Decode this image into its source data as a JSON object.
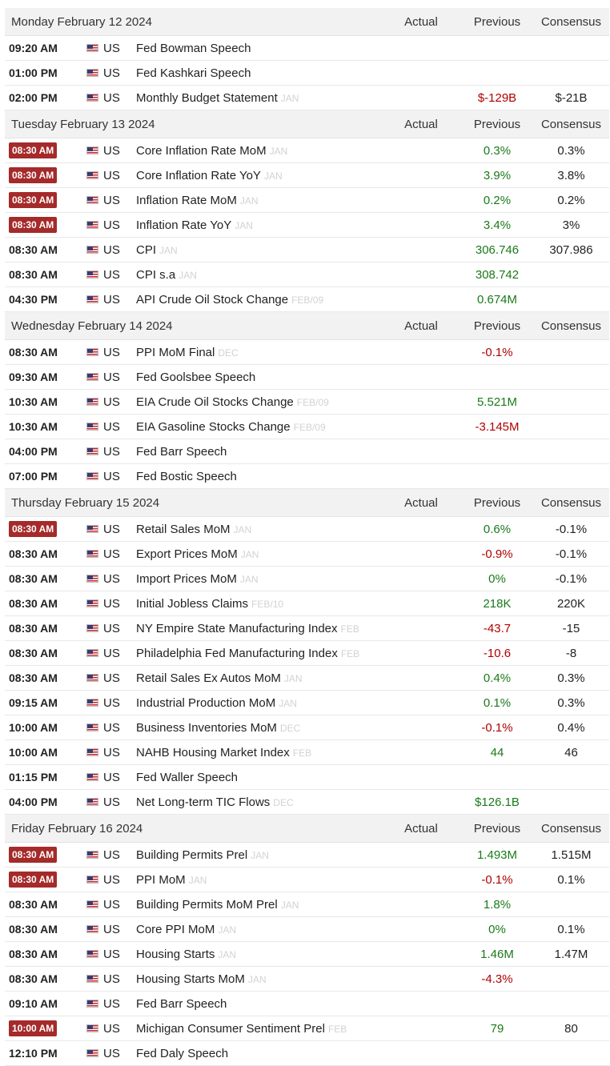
{
  "columns": {
    "actual": "Actual",
    "previous": "Previous",
    "consensus": "Consensus"
  },
  "colors": {
    "highlight_time_bg": "#a52a2a",
    "positive": "#1a7a1a",
    "negative": "#b00000"
  },
  "days": [
    {
      "date": "Monday February 12 2024",
      "events": [
        {
          "time": "09:20 AM",
          "hl": false,
          "country": "US",
          "event": "Fed Bowman Speech",
          "ref": "",
          "actual": "",
          "previous": "",
          "prev_color": "",
          "consensus": ""
        },
        {
          "time": "01:00 PM",
          "hl": false,
          "country": "US",
          "event": "Fed Kashkari Speech",
          "ref": "",
          "actual": "",
          "previous": "",
          "prev_color": "",
          "consensus": ""
        },
        {
          "time": "02:00 PM",
          "hl": false,
          "country": "US",
          "event": "Monthly Budget Statement",
          "ref": "JAN",
          "actual": "",
          "previous": "$-129B",
          "prev_color": "neg",
          "consensus": "$-21B"
        }
      ]
    },
    {
      "date": "Tuesday February 13 2024",
      "events": [
        {
          "time": "08:30 AM",
          "hl": true,
          "country": "US",
          "event": "Core Inflation Rate MoM",
          "ref": "JAN",
          "actual": "",
          "previous": "0.3%",
          "prev_color": "pos",
          "consensus": "0.3%"
        },
        {
          "time": "08:30 AM",
          "hl": true,
          "country": "US",
          "event": "Core Inflation Rate YoY",
          "ref": "JAN",
          "actual": "",
          "previous": "3.9%",
          "prev_color": "pos",
          "consensus": "3.8%"
        },
        {
          "time": "08:30 AM",
          "hl": true,
          "country": "US",
          "event": "Inflation Rate MoM",
          "ref": "JAN",
          "actual": "",
          "previous": "0.2%",
          "prev_color": "pos",
          "consensus": "0.2%"
        },
        {
          "time": "08:30 AM",
          "hl": true,
          "country": "US",
          "event": "Inflation Rate YoY",
          "ref": "JAN",
          "actual": "",
          "previous": "3.4%",
          "prev_color": "pos",
          "consensus": "3%"
        },
        {
          "time": "08:30 AM",
          "hl": false,
          "country": "US",
          "event": "CPI",
          "ref": "JAN",
          "actual": "",
          "previous": "306.746",
          "prev_color": "pos",
          "consensus": "307.986"
        },
        {
          "time": "08:30 AM",
          "hl": false,
          "country": "US",
          "event": "CPI s.a",
          "ref": "JAN",
          "actual": "",
          "previous": "308.742",
          "prev_color": "pos",
          "consensus": ""
        },
        {
          "time": "04:30 PM",
          "hl": false,
          "country": "US",
          "event": "API Crude Oil Stock Change",
          "ref": "FEB/09",
          "actual": "",
          "previous": "0.674M",
          "prev_color": "pos",
          "consensus": ""
        }
      ]
    },
    {
      "date": "Wednesday February 14 2024",
      "events": [
        {
          "time": "08:30 AM",
          "hl": false,
          "country": "US",
          "event": "PPI MoM Final",
          "ref": "DEC",
          "actual": "",
          "previous": "-0.1%",
          "prev_color": "neg",
          "consensus": ""
        },
        {
          "time": "09:30 AM",
          "hl": false,
          "country": "US",
          "event": "Fed Goolsbee Speech",
          "ref": "",
          "actual": "",
          "previous": "",
          "prev_color": "",
          "consensus": ""
        },
        {
          "time": "10:30 AM",
          "hl": false,
          "country": "US",
          "event": "EIA Crude Oil Stocks Change",
          "ref": "FEB/09",
          "actual": "",
          "previous": "5.521M",
          "prev_color": "pos",
          "consensus": ""
        },
        {
          "time": "10:30 AM",
          "hl": false,
          "country": "US",
          "event": "EIA Gasoline Stocks Change",
          "ref": "FEB/09",
          "actual": "",
          "previous": "-3.145M",
          "prev_color": "neg",
          "consensus": ""
        },
        {
          "time": "04:00 PM",
          "hl": false,
          "country": "US",
          "event": "Fed Barr Speech",
          "ref": "",
          "actual": "",
          "previous": "",
          "prev_color": "",
          "consensus": ""
        },
        {
          "time": "07:00 PM",
          "hl": false,
          "country": "US",
          "event": "Fed Bostic Speech",
          "ref": "",
          "actual": "",
          "previous": "",
          "prev_color": "",
          "consensus": ""
        }
      ]
    },
    {
      "date": "Thursday February 15 2024",
      "events": [
        {
          "time": "08:30 AM",
          "hl": true,
          "country": "US",
          "event": "Retail Sales MoM",
          "ref": "JAN",
          "actual": "",
          "previous": "0.6%",
          "prev_color": "pos",
          "consensus": "-0.1%"
        },
        {
          "time": "08:30 AM",
          "hl": false,
          "country": "US",
          "event": "Export Prices MoM",
          "ref": "JAN",
          "actual": "",
          "previous": "-0.9%",
          "prev_color": "neg",
          "consensus": "-0.1%"
        },
        {
          "time": "08:30 AM",
          "hl": false,
          "country": "US",
          "event": "Import Prices MoM",
          "ref": "JAN",
          "actual": "",
          "previous": "0%",
          "prev_color": "pos",
          "consensus": "-0.1%"
        },
        {
          "time": "08:30 AM",
          "hl": false,
          "country": "US",
          "event": "Initial Jobless Claims",
          "ref": "FEB/10",
          "actual": "",
          "previous": "218K",
          "prev_color": "pos",
          "consensus": "220K"
        },
        {
          "time": "08:30 AM",
          "hl": false,
          "country": "US",
          "event": "NY Empire State Manufacturing Index",
          "ref": "FEB",
          "actual": "",
          "previous": "-43.7",
          "prev_color": "neg",
          "consensus": "-15"
        },
        {
          "time": "08:30 AM",
          "hl": false,
          "country": "US",
          "event": "Philadelphia Fed Manufacturing Index",
          "ref": "FEB",
          "actual": "",
          "previous": "-10.6",
          "prev_color": "neg",
          "consensus": "-8"
        },
        {
          "time": "08:30 AM",
          "hl": false,
          "country": "US",
          "event": "Retail Sales Ex Autos MoM",
          "ref": "JAN",
          "actual": "",
          "previous": "0.4%",
          "prev_color": "pos",
          "consensus": "0.3%"
        },
        {
          "time": "09:15 AM",
          "hl": false,
          "country": "US",
          "event": "Industrial Production MoM",
          "ref": "JAN",
          "actual": "",
          "previous": "0.1%",
          "prev_color": "pos",
          "consensus": "0.3%"
        },
        {
          "time": "10:00 AM",
          "hl": false,
          "country": "US",
          "event": "Business Inventories MoM",
          "ref": "DEC",
          "actual": "",
          "previous": "-0.1%",
          "prev_color": "neg",
          "consensus": "0.4%"
        },
        {
          "time": "10:00 AM",
          "hl": false,
          "country": "US",
          "event": "NAHB Housing Market Index",
          "ref": "FEB",
          "actual": "",
          "previous": "44",
          "prev_color": "pos",
          "consensus": "46"
        },
        {
          "time": "01:15 PM",
          "hl": false,
          "country": "US",
          "event": "Fed Waller Speech",
          "ref": "",
          "actual": "",
          "previous": "",
          "prev_color": "",
          "consensus": ""
        },
        {
          "time": "04:00 PM",
          "hl": false,
          "country": "US",
          "event": "Net Long-term TIC Flows",
          "ref": "DEC",
          "actual": "",
          "previous": "$126.1B",
          "prev_color": "pos",
          "consensus": ""
        }
      ]
    },
    {
      "date": "Friday February 16 2024",
      "events": [
        {
          "time": "08:30 AM",
          "hl": true,
          "country": "US",
          "event": "Building Permits Prel",
          "ref": "JAN",
          "actual": "",
          "previous": "1.493M",
          "prev_color": "pos",
          "consensus": "1.515M"
        },
        {
          "time": "08:30 AM",
          "hl": true,
          "country": "US",
          "event": "PPI MoM",
          "ref": "JAN",
          "actual": "",
          "previous": "-0.1%",
          "prev_color": "neg",
          "consensus": "0.1%"
        },
        {
          "time": "08:30 AM",
          "hl": false,
          "country": "US",
          "event": "Building Permits MoM Prel",
          "ref": "JAN",
          "actual": "",
          "previous": "1.8%",
          "prev_color": "pos",
          "consensus": ""
        },
        {
          "time": "08:30 AM",
          "hl": false,
          "country": "US",
          "event": "Core PPI MoM",
          "ref": "JAN",
          "actual": "",
          "previous": "0%",
          "prev_color": "pos",
          "consensus": "0.1%"
        },
        {
          "time": "08:30 AM",
          "hl": false,
          "country": "US",
          "event": "Housing Starts",
          "ref": "JAN",
          "actual": "",
          "previous": "1.46M",
          "prev_color": "pos",
          "consensus": "1.47M"
        },
        {
          "time": "08:30 AM",
          "hl": false,
          "country": "US",
          "event": "Housing Starts MoM",
          "ref": "JAN",
          "actual": "",
          "previous": "-4.3%",
          "prev_color": "neg",
          "consensus": ""
        },
        {
          "time": "09:10 AM",
          "hl": false,
          "country": "US",
          "event": "Fed Barr Speech",
          "ref": "",
          "actual": "",
          "previous": "",
          "prev_color": "",
          "consensus": ""
        },
        {
          "time": "10:00 AM",
          "hl": true,
          "country": "US",
          "event": "Michigan Consumer Sentiment Prel",
          "ref": "FEB",
          "actual": "",
          "previous": "79",
          "prev_color": "pos",
          "consensus": "80"
        },
        {
          "time": "12:10 PM",
          "hl": false,
          "country": "US",
          "event": "Fed Daly Speech",
          "ref": "",
          "actual": "",
          "previous": "",
          "prev_color": "",
          "consensus": ""
        }
      ]
    }
  ]
}
